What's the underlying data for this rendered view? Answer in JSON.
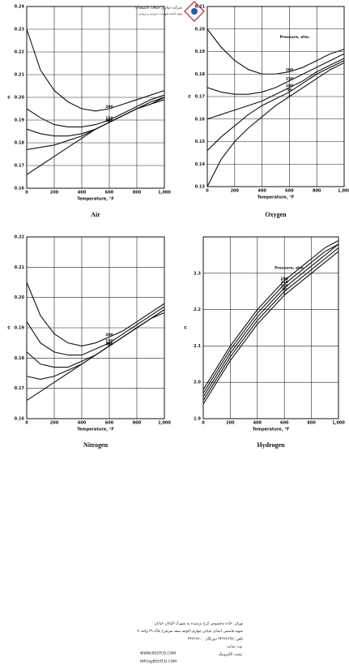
{
  "header": {
    "logo_text": "شرکت سازان صنعت تاسیسات",
    "logo_subtext": "تولید کننده تجهیزات حرارتی و برودتی"
  },
  "chart_data": [
    {
      "type": "line",
      "caption": "Air",
      "x_label": "Temperature, °F",
      "y_label": "c",
      "color": "#111",
      "grid": true,
      "x": [
        0,
        100,
        200,
        300,
        400,
        500,
        600,
        700,
        800,
        900,
        1000
      ],
      "xlim": [
        0,
        1000
      ],
      "xticks": [
        0,
        200,
        400,
        600,
        800,
        {
          "value": 1000,
          "label": "1,000"
        }
      ],
      "ylim": [
        0.16,
        0.24
      ],
      "yticks": [
        0.16,
        0.17,
        0.18,
        0.19,
        {
          "value": 0.2,
          "label": "0.20"
        },
        0.21,
        0.22,
        0.23,
        0.24
      ],
      "series": [
        {
          "name": "1",
          "values": [
            0.166,
            0.17,
            0.174,
            0.178,
            0.182,
            0.186,
            0.189,
            0.192,
            0.195,
            0.197,
            0.199
          ]
        },
        {
          "name": "50",
          "values": [
            0.177,
            0.178,
            0.179,
            0.181,
            0.183,
            0.186,
            0.189,
            0.192,
            0.195,
            0.197,
            0.2
          ]
        },
        {
          "name": "100",
          "values": [
            0.186,
            0.184,
            0.183,
            0.183,
            0.184,
            0.186,
            0.189,
            0.192,
            0.195,
            0.198,
            0.2
          ]
        },
        {
          "name": "150",
          "values": [
            0.195,
            0.191,
            0.188,
            0.187,
            0.187,
            0.188,
            0.19,
            0.193,
            0.196,
            0.199,
            0.201
          ]
        },
        {
          "name": "200",
          "values": [
            0.23,
            0.212,
            0.203,
            0.198,
            0.195,
            0.194,
            0.195,
            0.197,
            0.199,
            0.201,
            0.203
          ]
        }
      ]
    },
    {
      "type": "line",
      "caption": "Oxygen",
      "x_label": "Temperature, °F",
      "y_label": "c",
      "color": "#111",
      "grid": true,
      "annotation": "Pressure, atm.",
      "x": [
        0,
        100,
        200,
        300,
        400,
        500,
        600,
        700,
        800,
        900,
        1000
      ],
      "xlim": [
        0,
        1000
      ],
      "xticks": [
        0,
        200,
        400,
        600,
        800,
        {
          "value": 1000,
          "label": "1,000"
        }
      ],
      "ylim": [
        0.13,
        0.21
      ],
      "yticks": [
        0.13,
        0.14,
        0.15,
        0.16,
        0.17,
        0.18,
        0.19,
        {
          "value": 0.2,
          "label": "0.20"
        },
        0.21
      ],
      "series": [
        {
          "name": "1",
          "values": [
            0.13,
            0.142,
            0.15,
            0.156,
            0.161,
            0.166,
            0.17,
            0.174,
            0.178,
            0.182,
            0.185
          ]
        },
        {
          "name": "50",
          "values": [
            0.146,
            0.152,
            0.157,
            0.162,
            0.166,
            0.169,
            0.172,
            0.176,
            0.18,
            0.183,
            0.186
          ]
        },
        {
          "name": "100",
          "values": [
            0.16,
            0.162,
            0.164,
            0.166,
            0.168,
            0.171,
            0.174,
            0.177,
            0.181,
            0.184,
            0.187
          ]
        },
        {
          "name": "150",
          "values": [
            0.174,
            0.172,
            0.171,
            0.171,
            0.172,
            0.174,
            0.177,
            0.18,
            0.183,
            0.186,
            0.189
          ]
        },
        {
          "name": "200",
          "values": [
            0.2,
            0.192,
            0.186,
            0.182,
            0.18,
            0.18,
            0.181,
            0.183,
            0.186,
            0.189,
            0.191
          ]
        }
      ]
    },
    {
      "type": "line",
      "caption": "Nitrogen",
      "x_label": "Temperature, °F",
      "y_label": "c",
      "color": "#111",
      "grid": true,
      "x": [
        0,
        100,
        200,
        300,
        400,
        500,
        600,
        700,
        800,
        900,
        1000
      ],
      "xlim": [
        0,
        1000
      ],
      "xticks": [
        0,
        200,
        400,
        600,
        800,
        {
          "value": 1000,
          "label": "1,000"
        }
      ],
      "ylim": [
        0.16,
        0.22
      ],
      "yticks": [
        0.16,
        0.17,
        0.18,
        0.19,
        {
          "value": 0.2,
          "label": "0.20"
        },
        0.21,
        0.22
      ],
      "series": [
        {
          "name": "1",
          "values": [
            0.166,
            0.169,
            0.172,
            0.175,
            0.178,
            0.181,
            0.184,
            0.187,
            0.19,
            0.193,
            0.195
          ]
        },
        {
          "name": "50",
          "values": [
            0.174,
            0.173,
            0.174,
            0.176,
            0.178,
            0.181,
            0.184,
            0.187,
            0.19,
            0.193,
            0.196
          ]
        },
        {
          "name": "100",
          "values": [
            0.182,
            0.178,
            0.177,
            0.177,
            0.179,
            0.181,
            0.184,
            0.187,
            0.19,
            0.193,
            0.196
          ]
        },
        {
          "name": "150",
          "values": [
            0.192,
            0.185,
            0.182,
            0.181,
            0.181,
            0.183,
            0.185,
            0.188,
            0.191,
            0.194,
            0.197
          ]
        },
        {
          "name": "200",
          "values": [
            0.205,
            0.194,
            0.188,
            0.185,
            0.184,
            0.185,
            0.187,
            0.189,
            0.192,
            0.195,
            0.198
          ]
        }
      ]
    },
    {
      "type": "line",
      "caption": "Hydrogen",
      "x_label": "Temperature, °F",
      "y_label": "c",
      "color": "#111",
      "grid": true,
      "annotation": "Pressure, atm.",
      "x": [
        0,
        100,
        200,
        300,
        400,
        500,
        600,
        700,
        800,
        900,
        1000
      ],
      "xlim": [
        0,
        1000
      ],
      "xticks": [
        0,
        200,
        400,
        600,
        800,
        {
          "value": 1000,
          "label": "1,000"
        }
      ],
      "ylim": [
        1.9,
        2.4
      ],
      "yticks": [
        1.9,
        {
          "value": 2,
          "label": "2.0"
        },
        2.1,
        2.2,
        2.3
      ],
      "series": [
        {
          "name": "1",
          "values": [
            1.94,
            2.0,
            2.06,
            2.11,
            2.16,
            2.2,
            2.24,
            2.27,
            2.3,
            2.33,
            2.36
          ]
        },
        {
          "name": "50",
          "values": [
            1.95,
            2.01,
            2.07,
            2.12,
            2.17,
            2.21,
            2.25,
            2.28,
            2.31,
            2.34,
            2.37
          ]
        },
        {
          "name": "100",
          "values": [
            1.96,
            2.02,
            2.08,
            2.13,
            2.18,
            2.22,
            2.26,
            2.29,
            2.32,
            2.35,
            2.38
          ]
        },
        {
          "name": "150",
          "values": [
            1.97,
            2.03,
            2.09,
            2.14,
            2.19,
            2.23,
            2.27,
            2.3,
            2.33,
            2.36,
            2.38
          ]
        },
        {
          "name": "200",
          "values": [
            1.98,
            2.04,
            2.1,
            2.15,
            2.2,
            2.24,
            2.28,
            2.31,
            2.34,
            2.37,
            2.39
          ]
        }
      ]
    }
  ],
  "footer": {
    "lines": [
      "تهران: جاده مخصوص کرج نرسیده به شهرک اکباتان خیابان",
      "شهید قاسمی ابتدای خیابان چهارم (کوچه سعد شرقی) پلاک ۳۹ واحد ۲",
      "تلفن: ۴۴۶۳۷۶۹۸ دورنگار: ۴۴۶۳۷۷۰۰",
      "وب سایت:",
      "پست الکترونیک:"
    ],
    "website": "WWW.BSSTCO.COM",
    "email": "INFO@BSSTCO.COM"
  }
}
